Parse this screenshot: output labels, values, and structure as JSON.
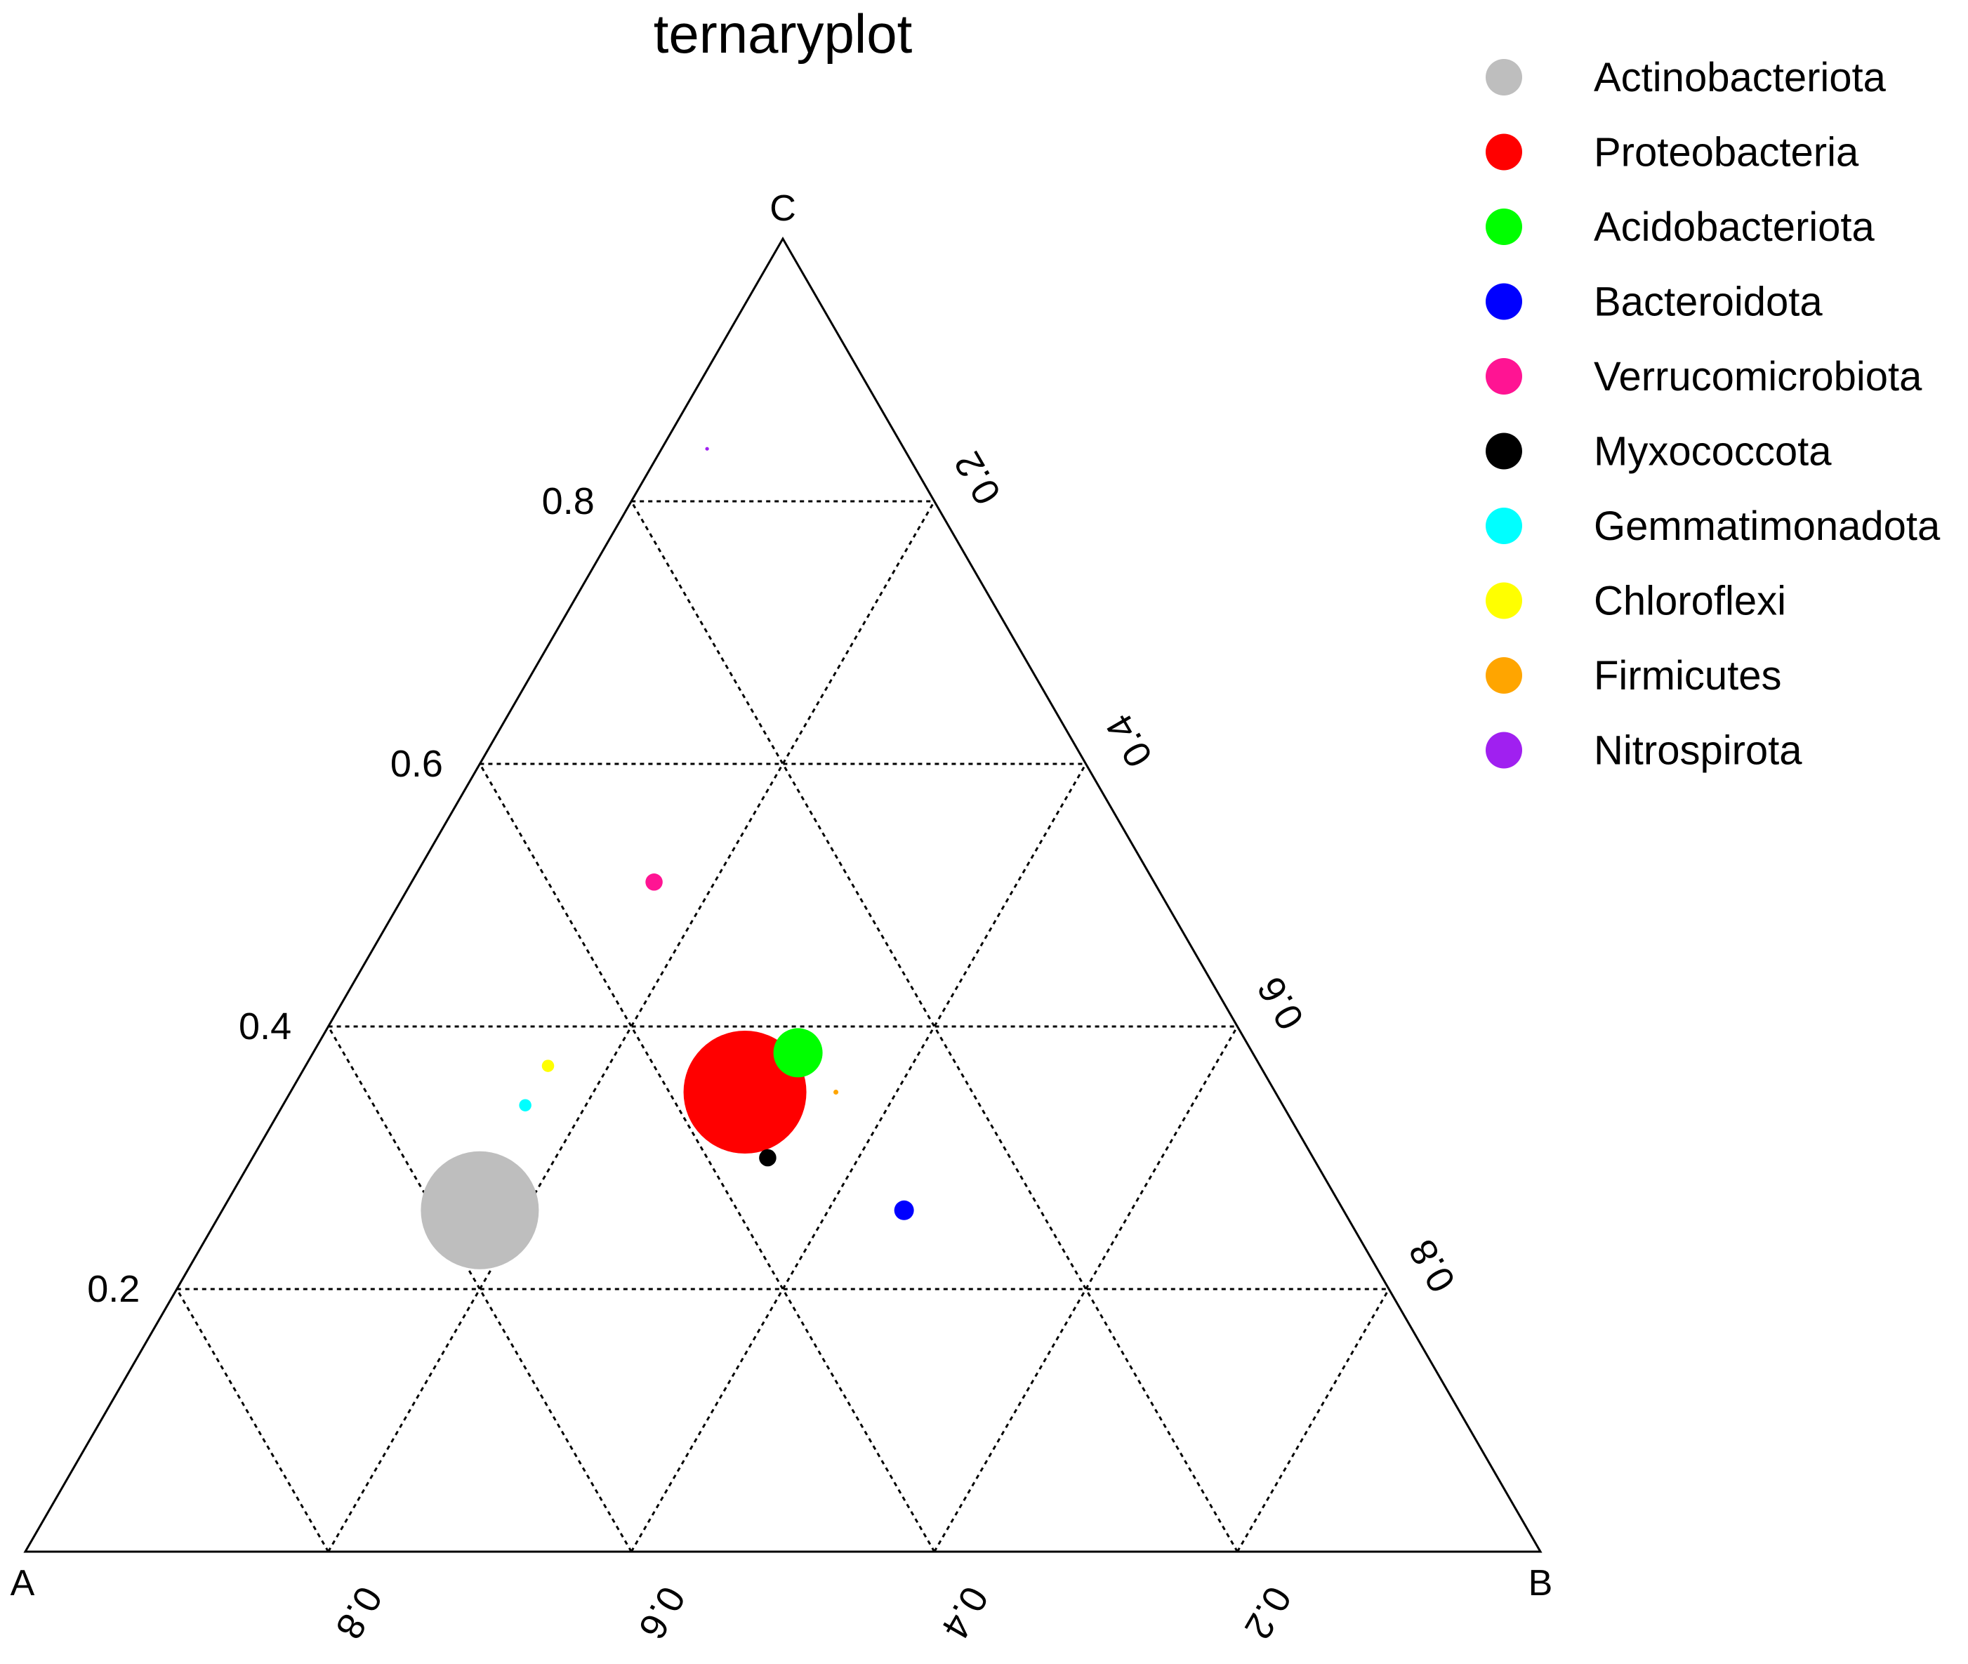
{
  "chart_data": {
    "type": "scatter",
    "subtype": "ternary",
    "title": "ternaryplot",
    "vertex_labels": {
      "A": "A",
      "B": "B",
      "C": "C"
    },
    "grid": true,
    "grid_levels": [
      0.2,
      0.4,
      0.6,
      0.8
    ],
    "axis_ticks": {
      "C_axis": [
        "0.2",
        "0.4",
        "0.6",
        "0.8"
      ],
      "B_axis": [
        "0.2",
        "0.4",
        "0.6",
        "0.8"
      ],
      "A_axis": [
        "0.2",
        "0.4",
        "0.6",
        "0.8"
      ]
    },
    "legend_position": "right",
    "series": [
      {
        "name": "Actinobacteriota",
        "color": "#bebebe",
        "size": 48,
        "a": 0.57,
        "b": 0.17,
        "c": 0.26
      },
      {
        "name": "Proteobacteria",
        "color": "#ff0000",
        "size": 50,
        "a": 0.35,
        "b": 0.3,
        "c": 0.35
      },
      {
        "name": "Acidobacteriota",
        "color": "#00ff00",
        "size": 20,
        "a": 0.3,
        "b": 0.32,
        "c": 0.38
      },
      {
        "name": "Bacteroidota",
        "color": "#0000ff",
        "size": 8,
        "a": 0.29,
        "b": 0.45,
        "c": 0.26
      },
      {
        "name": "Verrucomicrobiota",
        "color": "#ff1493",
        "size": 7,
        "a": 0.33,
        "b": 0.16,
        "c": 0.51
      },
      {
        "name": "Myxococcota",
        "color": "#000000",
        "size": 7,
        "a": 0.36,
        "b": 0.34,
        "c": 0.3
      },
      {
        "name": "Gemmatimonadota",
        "color": "#00ffff",
        "size": 5,
        "a": 0.5,
        "b": 0.16,
        "c": 0.34
      },
      {
        "name": "Chloroflexi",
        "color": "#ffff00",
        "size": 5,
        "a": 0.47,
        "b": 0.16,
        "c": 0.37
      },
      {
        "name": "Firmicutes",
        "color": "#ffa500",
        "size": 2,
        "a": 0.29,
        "b": 0.36,
        "c": 0.35
      },
      {
        "name": "Nitrospirota",
        "color": "#a020f0",
        "size": 1.5,
        "a": 0.13,
        "b": 0.03,
        "c": 0.84
      }
    ]
  }
}
